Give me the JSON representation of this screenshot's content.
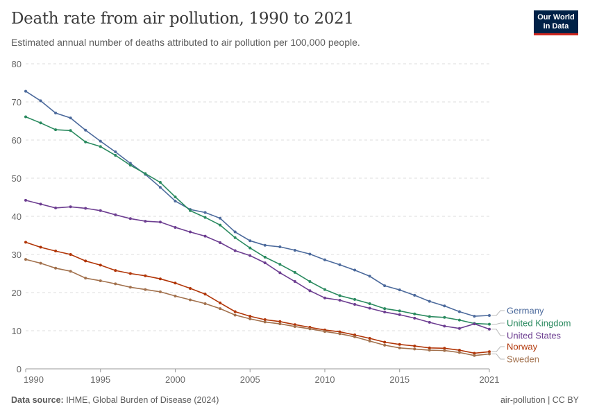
{
  "header": {
    "title": "Death rate from air pollution, 1990 to 2021",
    "subtitle": "Estimated annual number of deaths attributed to air pollution per 100,000 people."
  },
  "logo": {
    "line1": "Our World",
    "line2": "in Data"
  },
  "footer": {
    "source_label": "Data source:",
    "source_text": "IHME, Global Burden of Disease (2024)",
    "right": "air-pollution | CC BY"
  },
  "chart_data": {
    "type": "line",
    "title": "Death rate from air pollution, 1990 to 2021",
    "xlabel": "",
    "ylabel": "",
    "xlim": [
      1990,
      2021
    ],
    "ylim": [
      0,
      80
    ],
    "yticks": [
      0,
      10,
      20,
      30,
      40,
      50,
      60,
      70,
      80
    ],
    "xticks": [
      1990,
      1995,
      2000,
      2005,
      2010,
      2015,
      2021
    ],
    "grid": true,
    "x": [
      1990,
      1991,
      1992,
      1993,
      1994,
      1995,
      1996,
      1997,
      1998,
      1999,
      2000,
      2001,
      2002,
      2003,
      2004,
      2005,
      2006,
      2007,
      2008,
      2009,
      2010,
      2011,
      2012,
      2013,
      2014,
      2015,
      2016,
      2017,
      2018,
      2019,
      2020,
      2021
    ],
    "series": [
      {
        "name": "Germany",
        "color": "#4c6a9c",
        "values": [
          72.8,
          70.3,
          67.1,
          65.8,
          62.6,
          59.7,
          56.9,
          53.9,
          51.0,
          47.6,
          44.0,
          41.8,
          41.0,
          39.5,
          35.9,
          33.6,
          32.4,
          32.0,
          31.1,
          30.1,
          28.6,
          27.3,
          25.9,
          24.3,
          21.8,
          20.7,
          19.3,
          17.7,
          16.5,
          15.0,
          13.8,
          14.0
        ]
      },
      {
        "name": "United Kingdom",
        "color": "#2a8a5f",
        "values": [
          66.1,
          64.5,
          62.7,
          62.5,
          59.5,
          58.3,
          56.0,
          53.4,
          51.2,
          48.9,
          45.1,
          41.5,
          39.7,
          37.7,
          34.4,
          31.7,
          29.3,
          27.4,
          25.3,
          22.9,
          20.8,
          19.2,
          18.2,
          17.1,
          15.8,
          15.2,
          14.4,
          13.7,
          13.5,
          12.8,
          11.9,
          11.7
        ]
      },
      {
        "name": "United States",
        "color": "#6d3e91",
        "values": [
          44.2,
          43.2,
          42.2,
          42.5,
          42.1,
          41.5,
          40.4,
          39.4,
          38.7,
          38.5,
          37.1,
          35.9,
          34.8,
          33.1,
          31.0,
          29.7,
          27.8,
          25.2,
          22.9,
          20.5,
          18.6,
          18.0,
          16.9,
          15.9,
          14.9,
          14.2,
          13.3,
          12.2,
          11.2,
          10.6,
          11.8,
          10.4
        ]
      },
      {
        "name": "Norway",
        "color": "#b13507",
        "values": [
          33.2,
          31.9,
          30.9,
          30.0,
          28.3,
          27.2,
          25.8,
          25.0,
          24.4,
          23.6,
          22.5,
          21.1,
          19.6,
          17.3,
          15.0,
          13.8,
          12.9,
          12.4,
          11.6,
          10.9,
          10.2,
          9.7,
          8.9,
          8.0,
          7.0,
          6.4,
          6.0,
          5.5,
          5.4,
          4.9,
          4.1,
          4.5
        ]
      },
      {
        "name": "Sweden",
        "color": "#a2714d",
        "values": [
          28.7,
          27.7,
          26.4,
          25.6,
          23.8,
          23.1,
          22.3,
          21.4,
          20.8,
          20.2,
          19.1,
          18.1,
          17.1,
          15.8,
          14.1,
          13.1,
          12.3,
          11.8,
          11.1,
          10.5,
          9.8,
          9.2,
          8.4,
          7.3,
          6.2,
          5.5,
          5.2,
          4.9,
          4.8,
          4.3,
          3.5,
          3.9
        ]
      }
    ],
    "legend": "right-end labels"
  }
}
